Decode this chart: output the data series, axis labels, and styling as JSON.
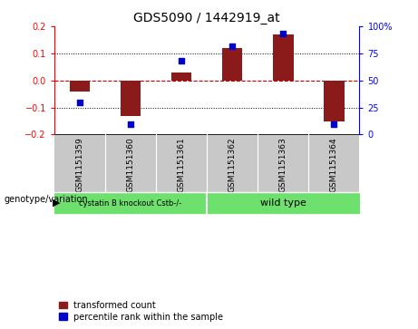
{
  "title": "GDS5090 / 1442919_at",
  "samples": [
    "GSM1151359",
    "GSM1151360",
    "GSM1151361",
    "GSM1151362",
    "GSM1151363",
    "GSM1151364"
  ],
  "red_bars": [
    -0.04,
    -0.13,
    0.03,
    0.12,
    0.17,
    -0.15
  ],
  "blue_dots_pct": [
    30,
    10,
    68,
    82,
    93,
    10
  ],
  "ylim_left": [
    -0.2,
    0.2
  ],
  "ylim_right": [
    0,
    100
  ],
  "yticks_left": [
    -0.2,
    -0.1,
    0.0,
    0.1,
    0.2
  ],
  "yticks_right": [
    0,
    25,
    50,
    75,
    100
  ],
  "bar_color": "#8B1A1A",
  "dot_color": "#0000CD",
  "zero_line_color": "#CC0000",
  "grid_color": "#000000",
  "bg_color": "#FFFFFF",
  "plot_bg": "#FFFFFF",
  "label_bg": "#C8C8C8",
  "group1_label": "cystatin B knockout Cstb-/-",
  "group2_label": "wild type",
  "group_bg": "#6EE06E",
  "group1_indices": [
    0,
    1,
    2
  ],
  "group2_indices": [
    3,
    4,
    5
  ],
  "genotype_label": "genotype/variation",
  "legend1": "transformed count",
  "legend2": "percentile rank within the sample",
  "title_fontsize": 10,
  "tick_fontsize": 7,
  "label_fontsize": 7,
  "bar_width": 0.4
}
